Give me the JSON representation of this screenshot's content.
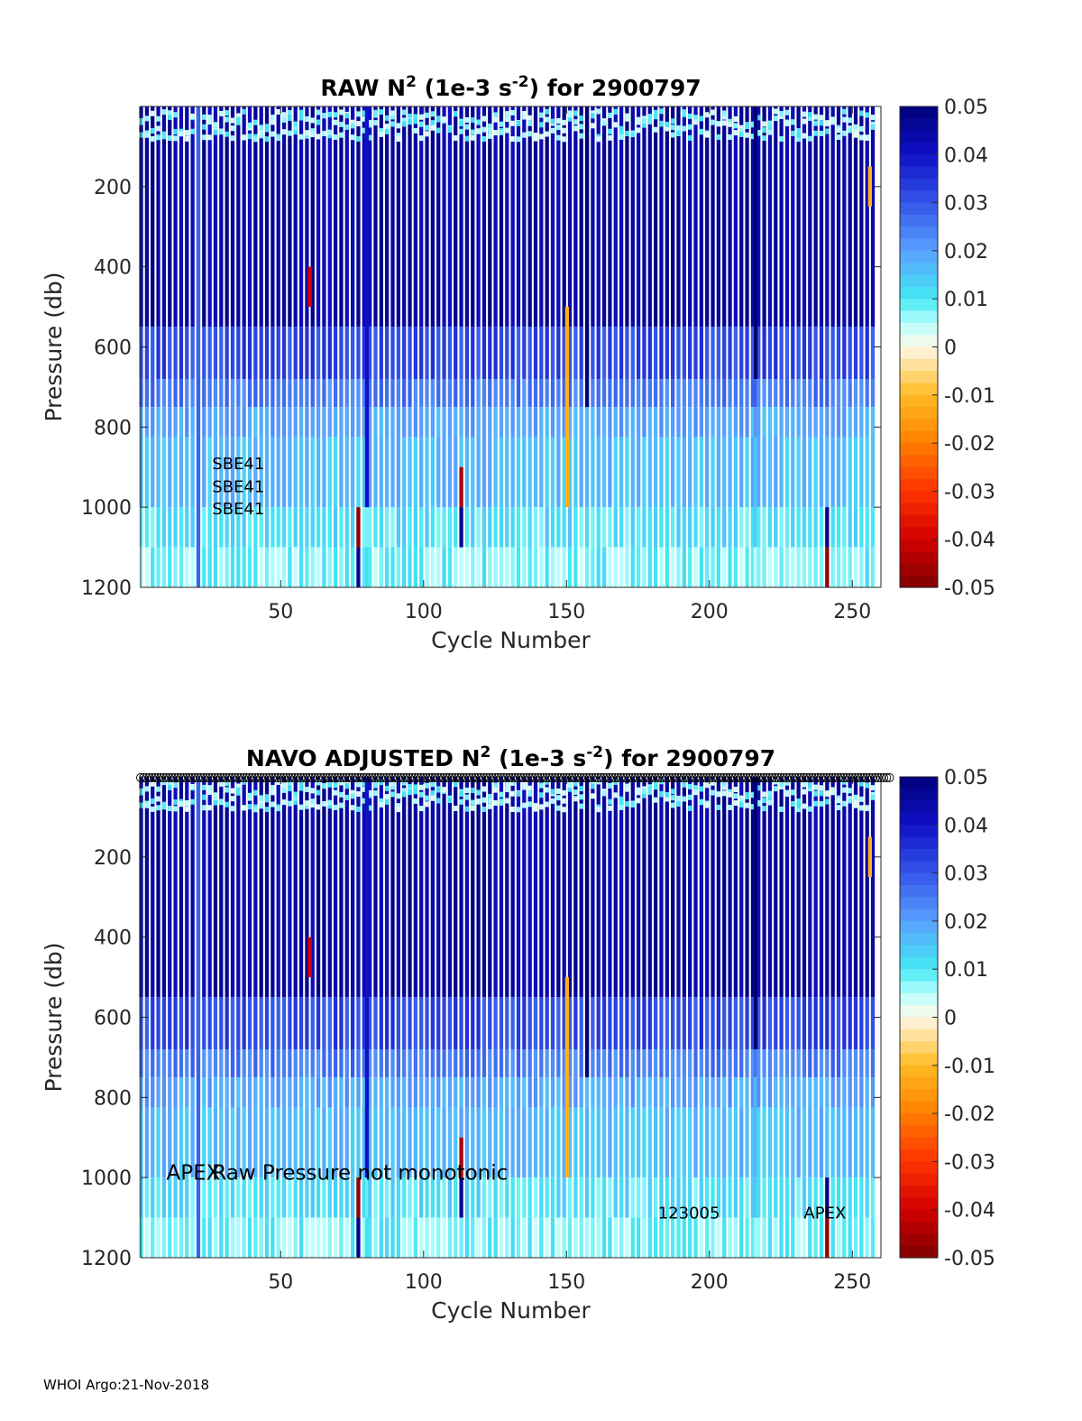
{
  "footer": "WHOI Argo:21-Nov-2018",
  "colormap": {
    "stops": [
      {
        "v": -0.05,
        "c": "#7f0000"
      },
      {
        "v": -0.04,
        "c": "#d40000"
      },
      {
        "v": -0.03,
        "c": "#ff3300"
      },
      {
        "v": -0.02,
        "c": "#ff7f00"
      },
      {
        "v": -0.01,
        "c": "#ffbb22"
      },
      {
        "v": 0.0,
        "c": "#fff8e8"
      },
      {
        "v": 0.005,
        "c": "#b8ffff"
      },
      {
        "v": 0.01,
        "c": "#44e8f2"
      },
      {
        "v": 0.02,
        "c": "#5aa0ff"
      },
      {
        "v": 0.03,
        "c": "#3355e8"
      },
      {
        "v": 0.04,
        "c": "#1010c8"
      },
      {
        "v": 0.05,
        "c": "#00007a"
      }
    ]
  },
  "chart_data": [
    {
      "type": "heatmap",
      "title_parts": {
        "pre": "RAW N",
        "sup1": "2",
        "mid": " (1e-3 s",
        "sup2": "-2",
        "post": ") for 2900797"
      },
      "xlabel": "Cycle Number",
      "ylabel": "Pressure (db)",
      "xlim": [
        1,
        260
      ],
      "ylim": [
        1200,
        0
      ],
      "xticks": [
        "50",
        "100",
        "150",
        "200",
        "250"
      ],
      "yticks": [
        "200",
        "400",
        "600",
        "800",
        "1000",
        "1200"
      ],
      "colorbar": {
        "range": [
          -0.05,
          0.05
        ],
        "ticks": [
          "0.05",
          "0.04",
          "0.03",
          "0.02",
          "0.01",
          "0",
          "-0.01",
          "-0.02",
          "-0.03",
          "-0.04",
          "-0.05"
        ]
      },
      "annotations": [
        {
          "text": "SBE41",
          "x": 26,
          "y": 905
        },
        {
          "text": "SBE41",
          "x": 26,
          "y": 962
        },
        {
          "text": "SBE41",
          "x": 26,
          "y": 1018
        }
      ],
      "depth_bands": [
        {
          "p0": 0,
          "p1": 550,
          "v": 0.045
        },
        {
          "p0": 550,
          "p1": 680,
          "v": 0.032
        },
        {
          "p0": 680,
          "p1": 750,
          "v": 0.025
        },
        {
          "p0": 750,
          "p1": 825,
          "v": 0.019
        },
        {
          "p0": 825,
          "p1": 1000,
          "v": 0.016
        },
        {
          "p0": 1000,
          "p1": 1100,
          "v": 0.011
        },
        {
          "p0": 1100,
          "p1": 1200,
          "v": 0.008
        }
      ],
      "column_overrides": [
        {
          "cycle": 21,
          "p0": 0,
          "p1": 1200,
          "v": 0.028
        },
        {
          "cycle": 80,
          "p0": 0,
          "p1": 1000,
          "v": 0.04
        },
        {
          "cycle": 77,
          "p0": 1000,
          "p1": 1100,
          "v": -0.048
        },
        {
          "cycle": 77,
          "p0": 1100,
          "p1": 1200,
          "v": 0.047
        },
        {
          "cycle": 113,
          "p0": 900,
          "p1": 1000,
          "v": -0.045
        },
        {
          "cycle": 113,
          "p0": 1000,
          "p1": 1100,
          "v": 0.047
        },
        {
          "cycle": 150,
          "p0": 500,
          "p1": 1000,
          "v": -0.012
        },
        {
          "cycle": 157,
          "p0": 0,
          "p1": 750,
          "v": 0.05
        },
        {
          "cycle": 216,
          "p0": 0,
          "p1": 680,
          "v": 0.05
        },
        {
          "cycle": 241,
          "p0": 1000,
          "p1": 1100,
          "v": 0.048
        },
        {
          "cycle": 241,
          "p0": 1100,
          "p1": 1200,
          "v": -0.048
        },
        {
          "cycle": 60,
          "p0": 400,
          "p1": 500,
          "v": -0.04
        },
        {
          "cycle": 256,
          "p0": 150,
          "p1": 250,
          "v": -0.012
        }
      ]
    },
    {
      "type": "heatmap",
      "title_parts": {
        "pre": "NAVO  ADJUSTED N",
        "sup1": "2",
        "mid": " (1e-3 s",
        "sup2": "-2",
        "post": ") for 2900797"
      },
      "xlabel": "Cycle Number",
      "ylabel": "Pressure (db)",
      "xlim": [
        1,
        260
      ],
      "ylim": [
        1200,
        0
      ],
      "xticks": [
        "50",
        "100",
        "150",
        "200",
        "250"
      ],
      "yticks": [
        "200",
        "400",
        "600",
        "800",
        "1000",
        "1200"
      ],
      "colorbar": {
        "range": [
          -0.05,
          0.05
        ],
        "ticks": [
          "0.05",
          "0.04",
          "0.03",
          "0.02",
          "0.01",
          "0",
          "-0.01",
          "-0.02",
          "-0.03",
          "-0.04",
          "-0.05"
        ]
      },
      "annotations": [
        {
          "text": "APEX",
          "x": 10,
          "y": 1005,
          "big": true
        },
        {
          "text": "Raw Pressure not monotonic",
          "x": 26,
          "y": 1005,
          "big": true
        },
        {
          "text": "123005",
          "x": 182,
          "y": 1102
        },
        {
          "text": "APEX",
          "x": 233,
          "y": 1102
        }
      ],
      "markers_row": true,
      "depth_bands": [
        {
          "p0": 0,
          "p1": 550,
          "v": 0.045
        },
        {
          "p0": 550,
          "p1": 680,
          "v": 0.032
        },
        {
          "p0": 680,
          "p1": 750,
          "v": 0.025
        },
        {
          "p0": 750,
          "p1": 825,
          "v": 0.019
        },
        {
          "p0": 825,
          "p1": 1000,
          "v": 0.016
        },
        {
          "p0": 1000,
          "p1": 1100,
          "v": 0.011
        },
        {
          "p0": 1100,
          "p1": 1200,
          "v": 0.008
        }
      ],
      "column_overrides": [
        {
          "cycle": 21,
          "p0": 0,
          "p1": 1200,
          "v": 0.028
        },
        {
          "cycle": 80,
          "p0": 0,
          "p1": 1000,
          "v": 0.04
        },
        {
          "cycle": 77,
          "p0": 1000,
          "p1": 1100,
          "v": -0.048
        },
        {
          "cycle": 77,
          "p0": 1100,
          "p1": 1200,
          "v": 0.047
        },
        {
          "cycle": 113,
          "p0": 900,
          "p1": 1000,
          "v": -0.045
        },
        {
          "cycle": 113,
          "p0": 1000,
          "p1": 1100,
          "v": 0.047
        },
        {
          "cycle": 150,
          "p0": 500,
          "p1": 1000,
          "v": -0.012
        },
        {
          "cycle": 157,
          "p0": 0,
          "p1": 750,
          "v": 0.05
        },
        {
          "cycle": 216,
          "p0": 0,
          "p1": 680,
          "v": 0.05
        },
        {
          "cycle": 241,
          "p0": 1000,
          "p1": 1100,
          "v": 0.048
        },
        {
          "cycle": 241,
          "p0": 1100,
          "p1": 1200,
          "v": -0.048
        },
        {
          "cycle": 60,
          "p0": 400,
          "p1": 500,
          "v": -0.04
        },
        {
          "cycle": 256,
          "p0": 150,
          "p1": 250,
          "v": -0.012
        }
      ]
    }
  ]
}
